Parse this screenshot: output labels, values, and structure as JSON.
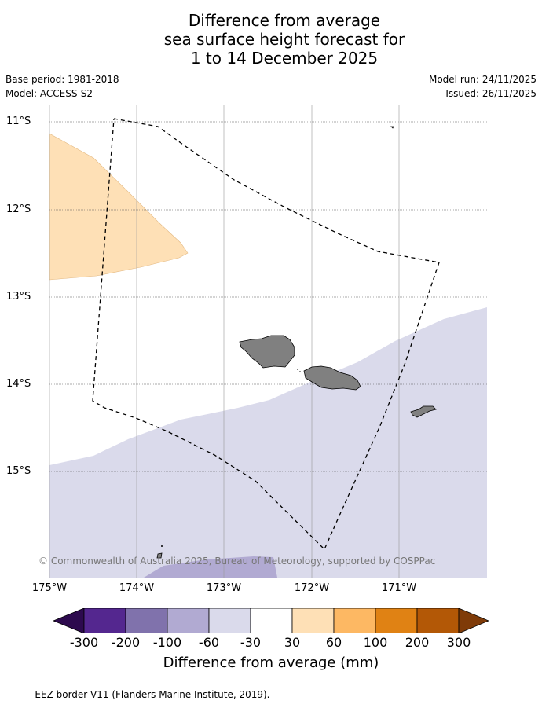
{
  "title": {
    "line1": "Difference from average",
    "line2": "sea surface height forecast for",
    "line3": "1 to 14 December 2025"
  },
  "info": {
    "base_period": "Base period: 1981-2018",
    "model": "Model: ACCESS-S2",
    "model_run": "Model run: 24/11/2025",
    "issued": "Issued: 26/11/2025"
  },
  "map": {
    "lat_labels": [
      "11°S",
      "12°S",
      "13°S",
      "14°S",
      "15°S"
    ],
    "lon_labels": [
      "175°W",
      "174°W",
      "173°W",
      "172°W",
      "171°W"
    ],
    "copyright": "© Commonwealth of Australia 2025, Bureau of Meteorology, supported by COSPPac",
    "legend_line": "--  --  -- EEZ border V11 (Flanders Marine Institute, 2019)."
  },
  "colorbar": {
    "label": "Difference from average (mm)",
    "ticks": [
      "-300",
      "-200",
      "-100",
      "-60",
      "-30",
      "30",
      "60",
      "100",
      "200",
      "300"
    ],
    "colors": [
      "#2d0a4e",
      "#54278f",
      "#8072ac",
      "#b1aad2",
      "#dadaeb",
      "#ffffff",
      "#fee0b6",
      "#fdb863",
      "#e08214",
      "#b35806",
      "#7f3b08"
    ],
    "land_color": "#808080"
  }
}
